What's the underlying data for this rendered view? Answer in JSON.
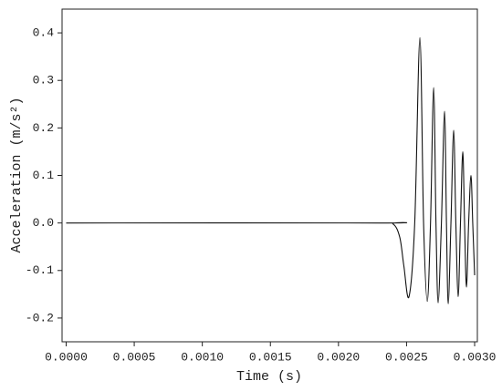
{
  "chart_data": {
    "type": "line",
    "x_label": "Time (s)",
    "y_label": "Acceleration (m/s²)",
    "x": [
      0,
      0.0023,
      0.0024,
      0.00245,
      0.00248,
      0.002518,
      0.00256,
      0.002598,
      0.002625,
      0.002652,
      0.002676,
      0.002699,
      0.002716,
      0.002732,
      0.002756,
      0.002779,
      0.002793,
      0.002806,
      0.002826,
      0.002846,
      0.002862,
      0.002879,
      0.002896,
      0.002913,
      0.002926,
      0.00294,
      0.002956,
      0.002973,
      0.002986,
      0.003
    ],
    "series": [
      {
        "color": "#111111",
        "values": [
          0,
          0,
          -0.002,
          -0.03,
          -0.09,
          -0.155,
          0,
          0.39,
          0,
          -0.165,
          0,
          0.285,
          0,
          -0.168,
          0,
          0.235,
          0,
          -0.17,
          0,
          0.195,
          0,
          -0.155,
          0,
          0.15,
          0,
          -0.135,
          0,
          0.1,
          0,
          -0.11
        ]
      }
    ],
    "xlim": [
      -3e-05,
      0.00302
    ],
    "ylim": [
      -0.25,
      0.45
    ],
    "xticks": [
      {
        "value": 0,
        "label": "0.0000"
      },
      {
        "value": 0.0005,
        "label": "0.0005"
      },
      {
        "value": 0.001,
        "label": "0.0010"
      },
      {
        "value": 0.0015,
        "label": "0.0015"
      },
      {
        "value": 0.002,
        "label": "0.0020"
      },
      {
        "value": 0.0025,
        "label": "0.0025"
      },
      {
        "value": 0.003,
        "label": "0.0030"
      }
    ],
    "yticks": [
      -0.2,
      -0.1,
      {
        "value": 0,
        "label": "0.0"
      },
      0.1,
      0.2,
      0.3,
      0.4
    ]
  }
}
